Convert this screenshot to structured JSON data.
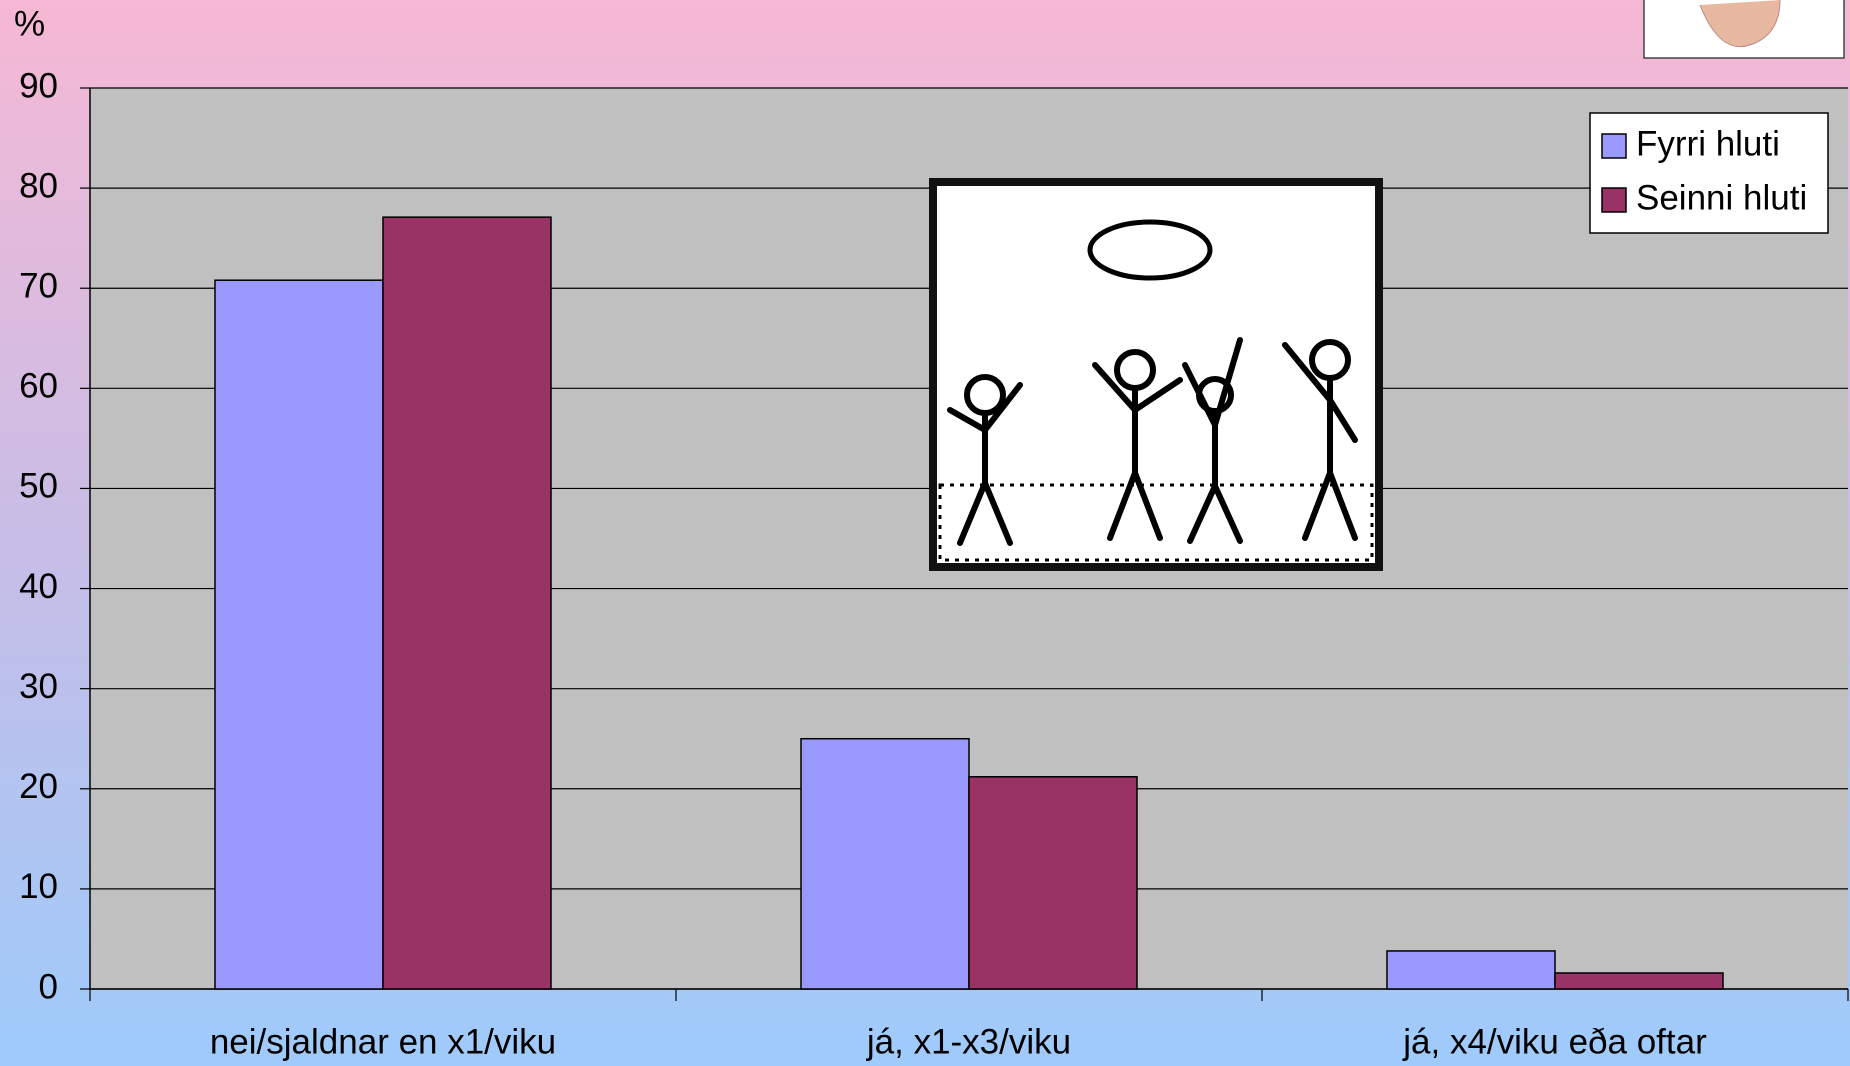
{
  "chart_data": {
    "type": "bar",
    "y_label": "%",
    "categories": [
      "nei/sjaldnar en x1/viku",
      "já, x1-x3/viku",
      "já, x4/viku eða oftar"
    ],
    "series": [
      {
        "name": "Fyrri hluti",
        "color": "#9999ff",
        "values": [
          70.8,
          25,
          3.8
        ]
      },
      {
        "name": "Seinni hluti",
        "color": "#993366",
        "values": [
          77.1,
          21.2,
          1.6
        ]
      }
    ],
    "ylim": [
      0,
      90
    ],
    "yticks": [
      0,
      10,
      20,
      30,
      40,
      50,
      60,
      70,
      80,
      90
    ],
    "grid": true,
    "legend": "top-right"
  }
}
